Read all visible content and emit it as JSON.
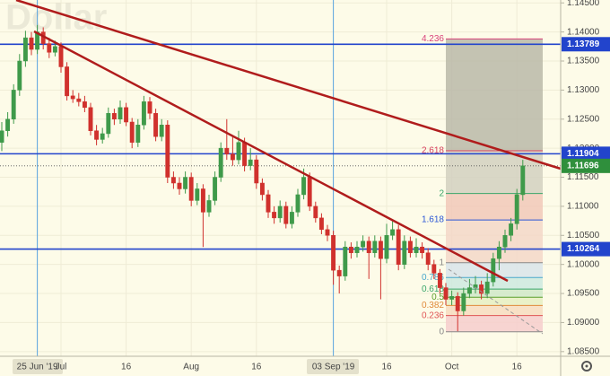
{
  "chart_data": {
    "type": "candlestick",
    "title": "Dollar",
    "categories": [
      null,
      null,
      null,
      null,
      null,
      null,
      "25 Jun '19",
      null,
      null,
      null,
      "Jul",
      null,
      null,
      null,
      null,
      null,
      null,
      null,
      null,
      null,
      null,
      "16",
      null,
      null,
      null,
      null,
      null,
      null,
      null,
      null,
      null,
      null,
      "Aug",
      null,
      null,
      null,
      null,
      null,
      null,
      null,
      null,
      null,
      null,
      "16",
      null,
      null,
      null,
      null,
      null,
      null,
      null,
      null,
      null,
      null,
      null,
      null,
      "03 Sep '19",
      null,
      null,
      null,
      null,
      null,
      null,
      null,
      null,
      "16",
      null,
      null,
      null,
      null,
      null,
      null,
      null,
      null,
      null,
      null,
      "Oct",
      null,
      null,
      null,
      null,
      null,
      null,
      null,
      null,
      null,
      null,
      "16",
      null
    ],
    "open": [
      1.121,
      1.123,
      1.125,
      1.13,
      1.135,
      1.139,
      1.137,
      1.14,
      1.138,
      1.1365,
      1.1375,
      1.134,
      1.129,
      1.1285,
      1.128,
      1.127,
      1.123,
      1.1215,
      1.1225,
      1.126,
      1.125,
      1.127,
      1.1245,
      1.121,
      1.124,
      1.128,
      1.126,
      1.122,
      1.124,
      1.115,
      1.114,
      1.113,
      1.115,
      1.111,
      1.113,
      1.109,
      1.111,
      1.115,
      1.12,
      1.119,
      1.118,
      1.121,
      1.117,
      1.118,
      1.114,
      1.112,
      1.109,
      1.108,
      1.11,
      1.107,
      1.109,
      1.112,
      1.115,
      1.11,
      1.108,
      1.106,
      1.105,
      1.099,
      1.098,
      1.103,
      1.102,
      1.103,
      1.104,
      1.102,
      1.104,
      1.101,
      1.105,
      1.106,
      1.1,
      1.104,
      1.102,
      1.103,
      1.102,
      1.1,
      1.0985,
      1.096,
      1.094,
      1.0945,
      1.092,
      1.095,
      1.096,
      1.0965,
      1.095,
      1.097,
      1.101,
      1.103,
      1.105,
      1.107,
      1.112
    ],
    "high": [
      1.1245,
      1.1262,
      1.131,
      1.1362,
      1.1402,
      1.14,
      1.1412,
      1.1408,
      1.139,
      1.1385,
      1.1382,
      1.1348,
      1.13,
      1.1295,
      1.129,
      1.1278,
      1.124,
      1.1235,
      1.127,
      1.1268,
      1.1282,
      1.1278,
      1.1252,
      1.125,
      1.129,
      1.1288,
      1.1268,
      1.125,
      1.1248,
      1.116,
      1.115,
      1.116,
      1.1158,
      1.114,
      1.1138,
      1.112,
      1.116,
      1.121,
      1.125,
      1.122,
      1.123,
      1.1218,
      1.12,
      1.1188,
      1.1148,
      1.1128,
      1.11,
      1.111,
      1.1108,
      1.11,
      1.113,
      1.1165,
      1.1158,
      1.1108,
      1.1088,
      1.1068,
      1.1058,
      1.0998,
      1.104,
      1.1038,
      1.104,
      1.105,
      1.1048,
      1.105,
      1.1048,
      1.107,
      1.1075,
      1.1068,
      1.105,
      1.1048,
      1.1045,
      1.1038,
      1.1028,
      1.1008,
      1.0992,
      1.0968,
      1.0955,
      1.0952,
      1.096,
      1.0975,
      1.098,
      1.0972,
      1.0985,
      1.102,
      1.104,
      1.106,
      1.108,
      1.113,
      1.118
    ],
    "low": [
      1.1195,
      1.122,
      1.1242,
      1.129,
      1.134,
      1.136,
      1.1362,
      1.137,
      1.1355,
      1.1358,
      1.133,
      1.1282,
      1.1278,
      1.1272,
      1.1262,
      1.1222,
      1.1205,
      1.1208,
      1.1218,
      1.124,
      1.1242,
      1.1238,
      1.12,
      1.1202,
      1.1232,
      1.125,
      1.1212,
      1.1212,
      1.114,
      1.113,
      1.112,
      1.1122,
      1.11,
      1.1102,
      1.103,
      1.1082,
      1.1102,
      1.1142,
      1.118,
      1.117,
      1.1172,
      1.116,
      1.1162,
      1.113,
      1.111,
      1.108,
      1.107,
      1.1072,
      1.1062,
      1.1062,
      1.1082,
      1.1112,
      1.1092,
      1.1072,
      1.1052,
      1.104,
      1.0965,
      1.095,
      1.0972,
      1.101,
      1.1012,
      1.1022,
      1.0975,
      1.1012,
      1.094,
      1.1002,
      1.1042,
      1.099,
      1.0992,
      1.1012,
      1.1012,
      1.101,
      1.099,
      1.0975,
      1.095,
      1.093,
      1.093,
      1.0885,
      1.0912,
      1.0942,
      1.095,
      1.094,
      1.0942,
      1.0962,
      1.099,
      1.102,
      1.104,
      1.106,
      1.111
    ],
    "close": [
      1.123,
      1.125,
      1.13,
      1.135,
      1.139,
      1.137,
      1.14,
      1.138,
      1.1365,
      1.1375,
      1.134,
      1.129,
      1.1285,
      1.128,
      1.127,
      1.123,
      1.1215,
      1.1225,
      1.126,
      1.125,
      1.127,
      1.1245,
      1.121,
      1.124,
      1.128,
      1.126,
      1.122,
      1.124,
      1.115,
      1.114,
      1.113,
      1.115,
      1.111,
      1.113,
      1.109,
      1.111,
      1.115,
      1.12,
      1.119,
      1.118,
      1.121,
      1.117,
      1.118,
      1.114,
      1.112,
      1.109,
      1.108,
      1.11,
      1.107,
      1.109,
      1.112,
      1.115,
      1.11,
      1.108,
      1.106,
      1.105,
      1.099,
      1.098,
      1.103,
      1.102,
      1.103,
      1.104,
      1.102,
      1.104,
      1.101,
      1.105,
      1.106,
      1.1,
      1.104,
      1.102,
      1.103,
      1.102,
      1.1,
      1.0985,
      1.096,
      1.094,
      1.0945,
      1.092,
      1.095,
      1.096,
      1.0965,
      1.095,
      1.097,
      1.101,
      1.103,
      1.105,
      1.107,
      1.112,
      1.11696
    ],
    "up_color": "#3f9a4a",
    "down_color": "#d0312d",
    "ylim": [
      1.0842,
      1.1455
    ],
    "yticks": [
      {
        "value": 1.145,
        "label": "1.14500"
      },
      {
        "value": 1.14,
        "label": "1.14000"
      },
      {
        "value": 1.135,
        "label": "1.13500"
      },
      {
        "value": 1.13,
        "label": "1.13000"
      },
      {
        "value": 1.125,
        "label": "1.12500"
      },
      {
        "value": 1.12,
        "label": "1.12000"
      },
      {
        "value": 1.115,
        "label": "1.11500"
      },
      {
        "value": 1.11,
        "label": "1.11000"
      },
      {
        "value": 1.105,
        "label": "1.10500"
      },
      {
        "value": 1.1,
        "label": "1.10000"
      },
      {
        "value": 1.095,
        "label": "1.09500"
      },
      {
        "value": 1.09,
        "label": "1.09000"
      },
      {
        "value": 1.085,
        "label": "1.08500"
      }
    ],
    "grid": true,
    "levels": [
      1.13789,
      1.11904,
      1.10264
    ],
    "level_color": "#2244cc",
    "last_color": "#2f8f3c",
    "fib": {
      "from": 1.0884,
      "to": 1.1003,
      "levels": [
        0,
        0.236,
        0.382,
        0.5,
        0.618,
        0.786,
        1,
        1.618,
        2,
        2.618,
        4.236
      ],
      "colors": [
        "#888888",
        "#e05555",
        "#e08a3a",
        "#5aa02c",
        "#3aa66a",
        "#4aa8cc",
        "#888888",
        "#2a56d6",
        "#3aa66a",
        "#d9405e",
        "#d9407a"
      ],
      "fills": [
        "#f6cccc",
        "#f7dcc0",
        "#e6efc2",
        "#cfe8c8",
        "#cde9df",
        "#d9e4ea",
        "#f3d7c8",
        "#f1c8b8",
        "#d2d0c0",
        "#bab9a8"
      ]
    }
  }
}
